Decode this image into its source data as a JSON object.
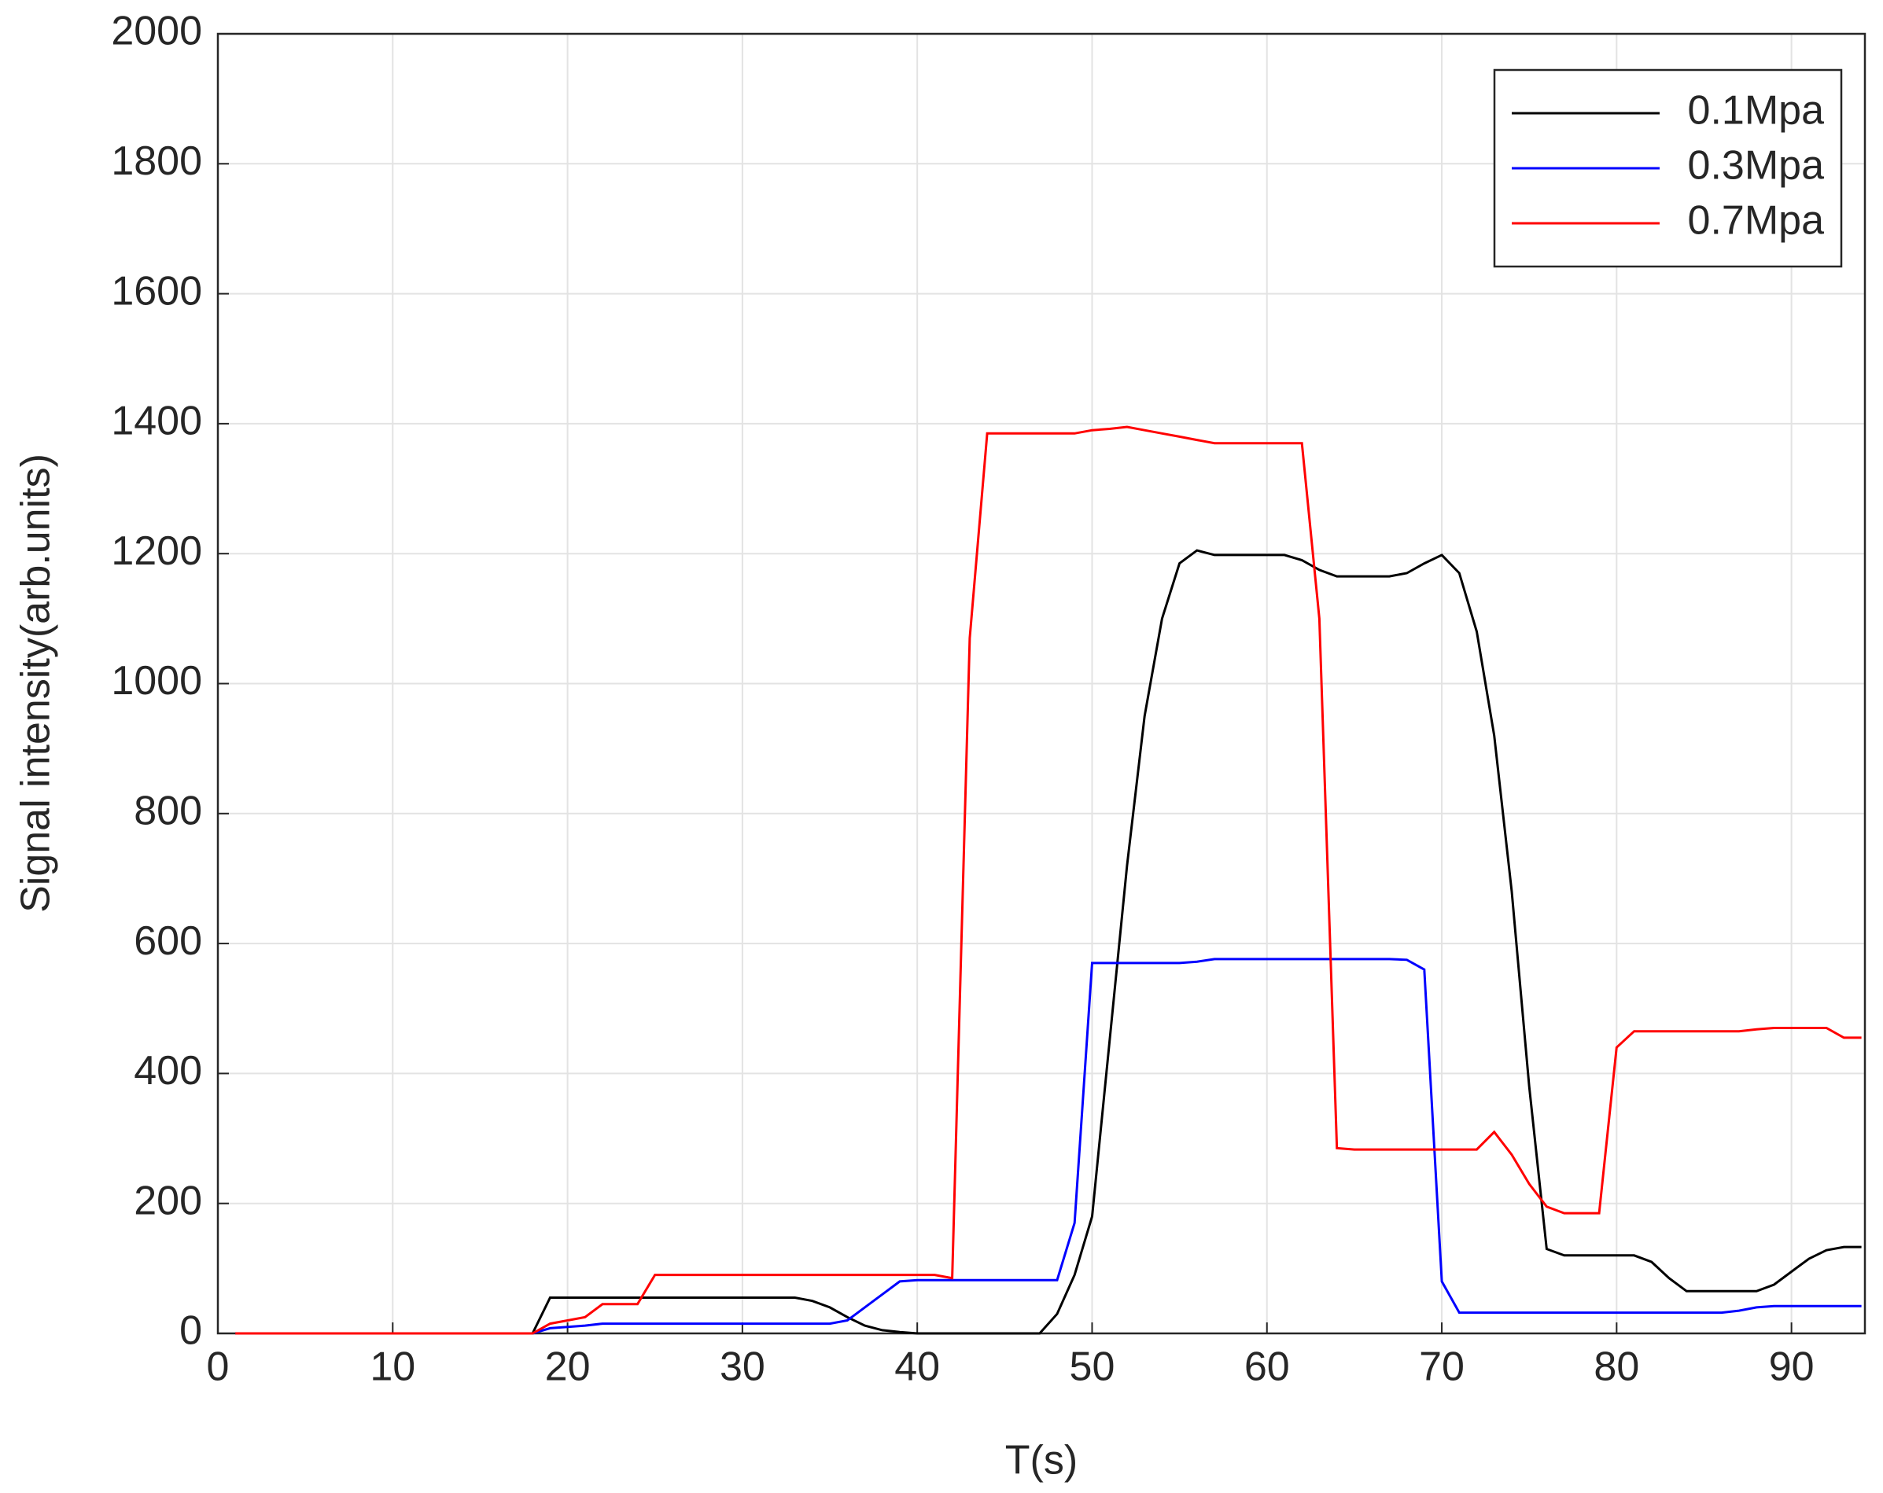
{
  "chart_data": {
    "type": "line",
    "x_label": "T(s)",
    "y_label": "Signal intensity(arb.units)",
    "x": [
      1,
      2,
      3,
      4,
      5,
      6,
      7,
      8,
      9,
      10,
      11,
      12,
      13,
      14,
      15,
      16,
      17,
      18,
      19,
      20,
      21,
      22,
      23,
      24,
      25,
      26,
      27,
      28,
      29,
      30,
      31,
      32,
      33,
      34,
      35,
      36,
      37,
      38,
      39,
      40,
      41,
      42,
      43,
      44,
      45,
      46,
      47,
      48,
      49,
      50,
      51,
      52,
      53,
      54,
      55,
      56,
      57,
      58,
      59,
      60,
      61,
      62,
      63,
      64,
      65,
      66,
      67,
      68,
      69,
      70,
      71,
      72,
      73,
      74,
      75,
      76,
      77,
      78,
      79,
      80,
      81,
      82,
      83,
      84,
      85,
      86,
      87,
      88,
      89,
      90,
      91,
      92,
      93,
      94
    ],
    "series": [
      {
        "name": "0.1Mpa",
        "color": "#000000",
        "values": [
          0,
          0,
          0,
          0,
          0,
          0,
          0,
          0,
          0,
          0,
          0,
          0,
          0,
          0,
          0,
          0,
          0,
          0,
          55,
          55,
          55,
          55,
          55,
          55,
          55,
          55,
          55,
          55,
          55,
          55,
          55,
          55,
          55,
          50,
          40,
          25,
          12,
          5,
          2,
          0,
          0,
          0,
          0,
          0,
          0,
          0,
          0,
          30,
          90,
          180,
          450,
          720,
          950,
          1100,
          1185,
          1205,
          1198,
          1198,
          1198,
          1198,
          1198,
          1190,
          1175,
          1165,
          1165,
          1165,
          1165,
          1170,
          1185,
          1198,
          1170,
          1080,
          920,
          680,
          380,
          130,
          120,
          120,
          120,
          120,
          120,
          110,
          85,
          65,
          65,
          65,
          65,
          65,
          75,
          95,
          115,
          128,
          133,
          133
        ]
      },
      {
        "name": "0.3Mpa",
        "color": "#0000ff",
        "values": [
          0,
          0,
          0,
          0,
          0,
          0,
          0,
          0,
          0,
          0,
          0,
          0,
          0,
          0,
          0,
          0,
          0,
          0,
          8,
          10,
          12,
          15,
          15,
          15,
          15,
          15,
          15,
          15,
          15,
          15,
          15,
          15,
          15,
          15,
          15,
          20,
          40,
          60,
          80,
          82,
          82,
          82,
          82,
          82,
          82,
          82,
          82,
          82,
          170,
          570,
          570,
          570,
          570,
          570,
          570,
          572,
          576,
          576,
          576,
          576,
          576,
          576,
          576,
          576,
          576,
          576,
          576,
          575,
          560,
          80,
          32,
          32,
          32,
          32,
          32,
          32,
          32,
          32,
          32,
          32,
          32,
          32,
          32,
          32,
          32,
          32,
          35,
          40,
          42,
          42,
          42,
          42,
          42,
          42
        ]
      },
      {
        "name": "0.7Mpa",
        "color": "#ff0000",
        "values": [
          0,
          0,
          0,
          0,
          0,
          0,
          0,
          0,
          0,
          0,
          0,
          0,
          0,
          0,
          0,
          0,
          0,
          0,
          15,
          20,
          25,
          45,
          45,
          45,
          90,
          90,
          90,
          90,
          90,
          90,
          90,
          90,
          90,
          90,
          90,
          90,
          90,
          90,
          90,
          90,
          90,
          85,
          1070,
          1385,
          1385,
          1385,
          1385,
          1385,
          1385,
          1390,
          1392,
          1395,
          1390,
          1385,
          1380,
          1375,
          1370,
          1370,
          1370,
          1370,
          1370,
          1370,
          1100,
          285,
          283,
          283,
          283,
          283,
          283,
          283,
          283,
          283,
          310,
          275,
          230,
          195,
          185,
          185,
          185,
          440,
          465,
          465,
          465,
          465,
          465,
          465,
          465,
          468,
          470,
          470,
          470,
          470,
          455,
          455
        ]
      }
    ],
    "xlim": [
      0,
      94.2
    ],
    "xticks": [
      0,
      10,
      20,
      30,
      40,
      50,
      60,
      70,
      80,
      90
    ],
    "ylim": [
      0,
      2000
    ],
    "yticks": [
      0,
      200,
      400,
      600,
      800,
      1000,
      1200,
      1400,
      1600,
      1800,
      2000
    ],
    "grid": true,
    "legend": "upper right"
  }
}
